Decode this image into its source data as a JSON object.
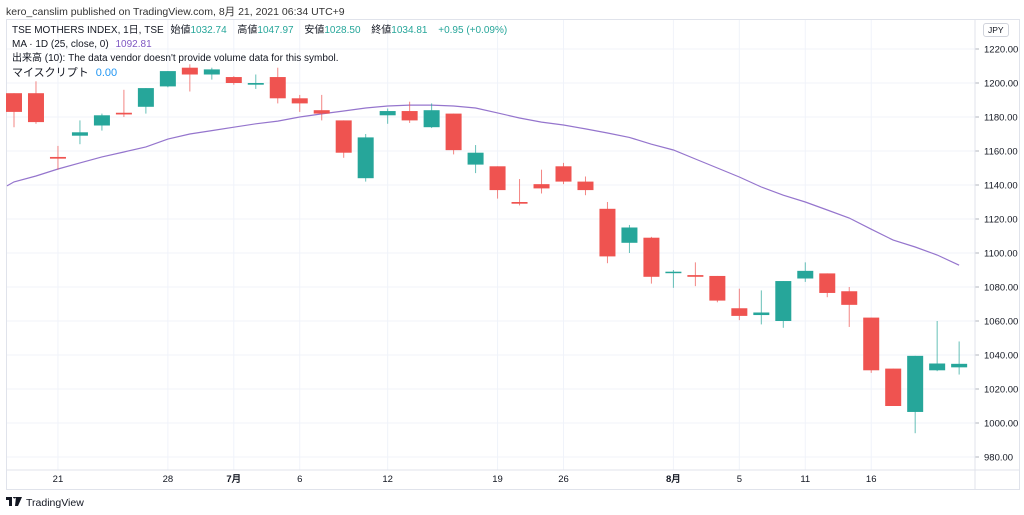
{
  "header": {
    "published_line": "kero_canslim published on TradingView.com, 8月 21, 2021 06:34 UTC+9"
  },
  "legend": {
    "symbol": "TSE MOTHERS INDEX, 1日, TSE",
    "open_label": "始値",
    "open": "1032.74",
    "high_label": "高値",
    "high": "1047.97",
    "low_label": "安値",
    "low": "1028.50",
    "close_label": "終値",
    "close": "1034.81",
    "change": "+0.95 (+0.09%)",
    "ma_label": "MA · 1D (25, close, 0)",
    "ma_value": "1092.81",
    "volume_msg": "出来高 (10): The data vendor doesn't provide volume data for this symbol.",
    "script_label": "マイスクリプト",
    "script_value": "0.00"
  },
  "currency_badge": "JPY",
  "footer": {
    "brand": "TradingView",
    "logo_mark": "TV"
  },
  "colors": {
    "up": "#26a69a",
    "down": "#ef5350",
    "ma": "#9575cd",
    "grid": "#f0f3fa"
  },
  "chart_data": {
    "type": "candlestick",
    "title": "TSE MOTHERS INDEX, 1日, TSE",
    "ylim": [
      970,
      1230
    ],
    "y_ticks": [
      "1220.00",
      "1200.00",
      "1180.00",
      "1160.00",
      "1140.00",
      "1120.00",
      "1100.00",
      "1080.00",
      "1060.00",
      "1040.00",
      "1020.00",
      "1000.00",
      "980.00"
    ],
    "x_ticks": [
      {
        "label": "21",
        "index": 2
      },
      {
        "label": "28",
        "index": 7
      },
      {
        "label": "7月",
        "index": 10,
        "bold": true
      },
      {
        "label": "6",
        "index": 13
      },
      {
        "label": "12",
        "index": 17
      },
      {
        "label": "19",
        "index": 22
      },
      {
        "label": "26",
        "index": 25
      },
      {
        "label": "8月",
        "index": 30,
        "bold": true
      },
      {
        "label": "5",
        "index": 33
      },
      {
        "label": "11",
        "index": 36
      },
      {
        "label": "16",
        "index": 39
      }
    ],
    "ohlc": [
      [
        1194,
        1194,
        1174,
        1183
      ],
      [
        1194,
        1201,
        1176,
        1177
      ],
      [
        1156.5,
        1163,
        1149,
        1155.5
      ],
      [
        1169,
        1178,
        1164,
        1171
      ],
      [
        1175,
        1182,
        1172,
        1181
      ],
      [
        1182.5,
        1196,
        1180,
        1181.5
      ],
      [
        1186,
        1197,
        1182,
        1197
      ],
      [
        1198,
        1207,
        1197.5,
        1207
      ],
      [
        1209,
        1211,
        1195,
        1205
      ],
      [
        1205,
        1209,
        1202,
        1208
      ],
      [
        1203.5,
        1204,
        1199,
        1200
      ],
      [
        1199,
        1205,
        1196.5,
        1200
      ],
      [
        1203.5,
        1209,
        1188,
        1191
      ],
      [
        1191,
        1193,
        1183,
        1188
      ],
      [
        1184,
        1193,
        1178,
        1182
      ],
      [
        1178,
        1178,
        1156,
        1159
      ],
      [
        1144,
        1170,
        1142,
        1168
      ],
      [
        1181,
        1185,
        1176,
        1183.5
      ],
      [
        1183.5,
        1189,
        1176.5,
        1178
      ],
      [
        1174,
        1188,
        1173.5,
        1184
      ],
      [
        1182,
        1182,
        1158,
        1160.5
      ],
      [
        1152,
        1163.5,
        1147,
        1159
      ],
      [
        1151,
        1151,
        1132,
        1137
      ],
      [
        1130,
        1143.5,
        1128,
        1129
      ],
      [
        1140.5,
        1149,
        1135,
        1138
      ],
      [
        1151,
        1153,
        1140.5,
        1142
      ],
      [
        1142,
        1145,
        1134,
        1137
      ],
      [
        1126,
        1130,
        1094,
        1098
      ],
      [
        1106,
        1116.5,
        1100,
        1115
      ],
      [
        1109,
        1109.5,
        1082,
        1086
      ],
      [
        1088.5,
        1090,
        1079.5,
        1089
      ],
      [
        1087,
        1094.5,
        1080.5,
        1086
      ],
      [
        1086.5,
        1086.5,
        1071,
        1072
      ],
      [
        1067.5,
        1079,
        1060.5,
        1063
      ],
      [
        1063.5,
        1078,
        1058,
        1065
      ],
      [
        1060,
        1083.5,
        1056,
        1083.5
      ],
      [
        1085,
        1094.5,
        1083,
        1089.5
      ],
      [
        1088,
        1088,
        1074,
        1076.5
      ],
      [
        1077.5,
        1080,
        1056.5,
        1069.5
      ],
      [
        1062,
        1062,
        1029.5,
        1031
      ],
      [
        1032,
        1032,
        1010,
        1010
      ],
      [
        1006.5,
        1039.5,
        994,
        1039.5
      ],
      [
        1031,
        1060,
        1030.5,
        1035
      ],
      [
        1032.74,
        1047.97,
        1028.5,
        1034.81
      ]
    ],
    "ma": [
      1141.8,
      1145.3,
      1149.4,
      1153,
      1156.5,
      1159.4,
      1162.4,
      1167,
      1170,
      1172,
      1174,
      1176,
      1177.6,
      1180,
      1181.8,
      1183.5,
      1185.3,
      1186.5,
      1187,
      1187,
      1186.5,
      1185.3,
      1182.4,
      1179.4,
      1177,
      1175.3,
      1173,
      1170.6,
      1168,
      1164,
      1160.6,
      1155.3,
      1150,
      1144.7,
      1138.8,
      1134,
      1130,
      1125.3,
      1120.6,
      1114,
      1107.6,
      1103.5,
      1098.8,
      1092.81
    ],
    "ma_start": 1139.5
  }
}
